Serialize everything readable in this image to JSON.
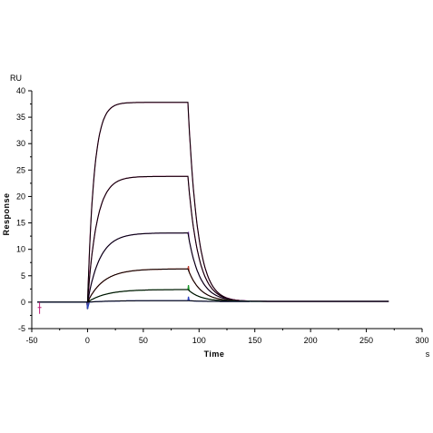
{
  "chart_data": {
    "type": "line",
    "title": "",
    "xlabel": "Time",
    "ylabel": "Response",
    "x_unit": "s",
    "y_unit": "RU",
    "xlim": [
      -50,
      300
    ],
    "ylim": [
      -5,
      40
    ],
    "x_ticks": [
      -50,
      0,
      50,
      100,
      150,
      200,
      250,
      300
    ],
    "y_ticks": [
      -5,
      0,
      5,
      10,
      15,
      20,
      25,
      30,
      35,
      40
    ],
    "grid": false,
    "legend": "none",
    "injection_start": 0,
    "injection_end": 90,
    "x_end": 270,
    "series": [
      {
        "color": "#c0207a",
        "fit_color": "#000000",
        "plateau": 37.8,
        "ka_rate": 0.17,
        "kd_rate": 0.115,
        "spike": 0.0
      },
      {
        "color": "#c0207a",
        "fit_color": "#000000",
        "plateau": 23.8,
        "ka_rate": 0.12,
        "kd_rate": 0.105,
        "spike": 0.3
      },
      {
        "color": "#7a2fb0",
        "fit_color": "#000000",
        "plateau": 13.1,
        "ka_rate": 0.09,
        "kd_rate": 0.095,
        "spike": 1.2
      },
      {
        "color": "#c0392b",
        "fit_color": "#000000",
        "plateau": 6.3,
        "ka_rate": 0.07,
        "kd_rate": 0.09,
        "spike": 1.4
      },
      {
        "color": "#1a9a2a",
        "fit_color": "#000000",
        "plateau": 2.4,
        "ka_rate": 0.06,
        "kd_rate": 0.085,
        "spike": 1.6
      },
      {
        "color": "#2b3fbf",
        "fit_color": "#000000",
        "plateau": 0.3,
        "ka_rate": 0.05,
        "kd_rate": 0.08,
        "spike": 1.3
      }
    ]
  }
}
